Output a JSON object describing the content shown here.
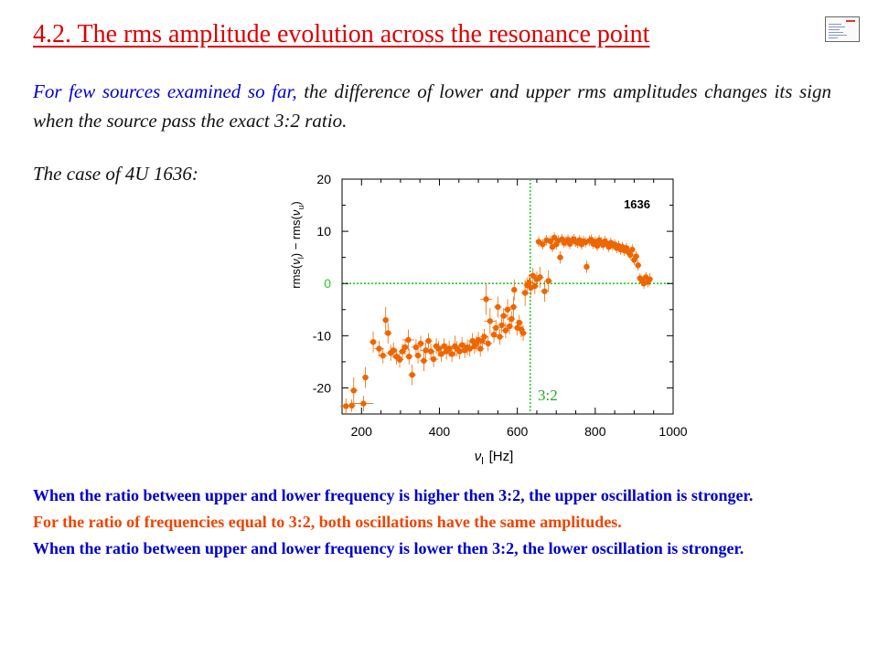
{
  "slide": {
    "title": "4.2. The rms amplitude evolution across the resonance point",
    "intro_part1": "For few sources examined so far, ",
    "intro_part2": "the difference of  lower and upper rms amplitudes changes its sign when the source pass the exact 3:2 ratio.",
    "case_label": "The case of 4U 1636:"
  },
  "conclusions": {
    "upper_stronger": "When the ratio between upper and lower frequency is higher then 3:2, the upper oscillation is stronger.",
    "equal": "For the ratio of frequencies equal to 3:2, both oscillations have the same amplitudes.",
    "lower_stronger": "When the ratio between upper and lower frequency is lower then 3:2, the lower oscillation is stronger."
  },
  "colors": {
    "title": "#dd0000",
    "intro_blue": "#0000cc",
    "data_orange": "#ee6600",
    "reference_lines": "#22cc22",
    "conclusion_orange": "#ee4400"
  },
  "chart_data": {
    "type": "scatter",
    "source_label": "1636",
    "xlabel_symbol": "ν",
    "xlabel_sub": "l",
    "xlabel_unit": "[Hz]",
    "ylabel_rms1": "rms(",
    "ylabel_nu1": "ν",
    "ylabel_sub1": "l",
    "ylabel_minus": ") − rms(",
    "ylabel_nu2": "ν",
    "ylabel_sub2": "u",
    "ylabel_close": ")",
    "xlim": [
      150,
      1000
    ],
    "ylim": [
      -25,
      20
    ],
    "xticks": [
      200,
      400,
      600,
      800,
      1000
    ],
    "yticks": [
      -20,
      -10,
      0,
      10,
      20
    ],
    "hline_y": 0,
    "vline_x": 633,
    "vline_label": "3:2",
    "error_bars": true,
    "points": [
      {
        "x": 160,
        "y": -23.5,
        "xe": 15,
        "ye": 1.5
      },
      {
        "x": 175,
        "y": -23.4,
        "xe": 10,
        "ye": 1.2
      },
      {
        "x": 180,
        "y": -20.5,
        "xe": 10,
        "ye": 2.5
      },
      {
        "x": 205,
        "y": -23.0,
        "xe": 25,
        "ye": 1.5
      },
      {
        "x": 210,
        "y": -18.0,
        "xe": 8,
        "ye": 2.0
      },
      {
        "x": 230,
        "y": -11.2,
        "xe": 10,
        "ye": 2.0
      },
      {
        "x": 245,
        "y": -12.5,
        "xe": 12,
        "ye": 1.5
      },
      {
        "x": 255,
        "y": -13.8,
        "xe": 12,
        "ye": 1.5
      },
      {
        "x": 262,
        "y": -7.0,
        "xe": 8,
        "ye": 2.5
      },
      {
        "x": 268,
        "y": -9.5,
        "xe": 10,
        "ye": 2.0
      },
      {
        "x": 275,
        "y": -13.3,
        "xe": 12,
        "ye": 1.5
      },
      {
        "x": 282,
        "y": -12.8,
        "xe": 10,
        "ye": 1.5
      },
      {
        "x": 290,
        "y": -14.0,
        "xe": 12,
        "ye": 1.5
      },
      {
        "x": 298,
        "y": -14.6,
        "xe": 10,
        "ye": 1.5
      },
      {
        "x": 305,
        "y": -13.0,
        "xe": 10,
        "ye": 1.5
      },
      {
        "x": 312,
        "y": -12.2,
        "xe": 10,
        "ye": 1.5
      },
      {
        "x": 320,
        "y": -10.8,
        "xe": 15,
        "ye": 2.0
      },
      {
        "x": 322,
        "y": -14.0,
        "xe": 10,
        "ye": 1.5
      },
      {
        "x": 330,
        "y": -17.5,
        "xe": 10,
        "ye": 2.0
      },
      {
        "x": 340,
        "y": -12.2,
        "xe": 12,
        "ye": 1.5
      },
      {
        "x": 345,
        "y": -13.8,
        "xe": 10,
        "ye": 1.5
      },
      {
        "x": 352,
        "y": -11.5,
        "xe": 10,
        "ye": 1.5
      },
      {
        "x": 360,
        "y": -14.8,
        "xe": 10,
        "ye": 2.0
      },
      {
        "x": 365,
        "y": -12.8,
        "xe": 12,
        "ye": 1.5
      },
      {
        "x": 372,
        "y": -11.0,
        "xe": 10,
        "ye": 1.5
      },
      {
        "x": 378,
        "y": -13.0,
        "xe": 10,
        "ye": 1.5
      },
      {
        "x": 385,
        "y": -14.5,
        "xe": 12,
        "ye": 1.5
      },
      {
        "x": 392,
        "y": -12.0,
        "xe": 10,
        "ye": 1.5
      },
      {
        "x": 398,
        "y": -12.5,
        "xe": 10,
        "ye": 1.5
      },
      {
        "x": 405,
        "y": -13.5,
        "xe": 10,
        "ye": 1.5
      },
      {
        "x": 412,
        "y": -12.0,
        "xe": 12,
        "ye": 1.5
      },
      {
        "x": 418,
        "y": -13.0,
        "xe": 10,
        "ye": 1.5
      },
      {
        "x": 425,
        "y": -12.5,
        "xe": 10,
        "ye": 1.5
      },
      {
        "x": 432,
        "y": -13.5,
        "xe": 10,
        "ye": 1.5
      },
      {
        "x": 440,
        "y": -12.0,
        "xe": 25,
        "ye": 2.0
      },
      {
        "x": 445,
        "y": -12.5,
        "xe": 10,
        "ye": 1.5
      },
      {
        "x": 452,
        "y": -13.0,
        "xe": 10,
        "ye": 1.5
      },
      {
        "x": 458,
        "y": -11.8,
        "xe": 10,
        "ye": 1.5
      },
      {
        "x": 465,
        "y": -12.8,
        "xe": 10,
        "ye": 1.5
      },
      {
        "x": 472,
        "y": -12.2,
        "xe": 10,
        "ye": 1.5
      },
      {
        "x": 478,
        "y": -12.5,
        "xe": 10,
        "ye": 1.5
      },
      {
        "x": 485,
        "y": -11.0,
        "xe": 10,
        "ye": 1.5
      },
      {
        "x": 490,
        "y": -12.0,
        "xe": 10,
        "ye": 1.5
      },
      {
        "x": 495,
        "y": -11.5,
        "xe": 12,
        "ye": 1.5
      },
      {
        "x": 500,
        "y": -10.8,
        "xe": 10,
        "ye": 1.5
      },
      {
        "x": 505,
        "y": -12.5,
        "xe": 10,
        "ye": 1.5
      },
      {
        "x": 510,
        "y": -11.0,
        "xe": 10,
        "ye": 1.5
      },
      {
        "x": 515,
        "y": -10.2,
        "xe": 10,
        "ye": 1.5
      },
      {
        "x": 520,
        "y": -3.0,
        "xe": 15,
        "ye": 3.0
      },
      {
        "x": 525,
        "y": -11.5,
        "xe": 10,
        "ye": 1.5
      },
      {
        "x": 530,
        "y": -7.2,
        "xe": 15,
        "ye": 2.5
      },
      {
        "x": 540,
        "y": -9.8,
        "xe": 10,
        "ye": 1.5
      },
      {
        "x": 545,
        "y": -8.5,
        "xe": 10,
        "ye": 1.5
      },
      {
        "x": 550,
        "y": -4.5,
        "xe": 10,
        "ye": 2.0
      },
      {
        "x": 555,
        "y": -10.2,
        "xe": 10,
        "ye": 1.5
      },
      {
        "x": 560,
        "y": -8.0,
        "xe": 10,
        "ye": 1.5
      },
      {
        "x": 565,
        "y": -6.2,
        "xe": 10,
        "ye": 1.5
      },
      {
        "x": 570,
        "y": -9.0,
        "xe": 10,
        "ye": 1.5
      },
      {
        "x": 575,
        "y": -5.0,
        "xe": 10,
        "ye": 2.0
      },
      {
        "x": 580,
        "y": -8.2,
        "xe": 10,
        "ye": 1.5
      },
      {
        "x": 585,
        "y": -6.8,
        "xe": 10,
        "ye": 1.5
      },
      {
        "x": 590,
        "y": -4.5,
        "xe": 10,
        "ye": 2.0
      },
      {
        "x": 592,
        "y": -1.2,
        "xe": 8,
        "ye": 2.0
      },
      {
        "x": 600,
        "y": -8.5,
        "xe": 10,
        "ye": 1.5
      },
      {
        "x": 605,
        "y": -7.5,
        "xe": 10,
        "ye": 1.5
      },
      {
        "x": 610,
        "y": -8.8,
        "xe": 10,
        "ye": 1.5
      },
      {
        "x": 615,
        "y": -9.5,
        "xe": 10,
        "ye": 1.5
      },
      {
        "x": 620,
        "y": -1.8,
        "xe": 10,
        "ye": 2.5
      },
      {
        "x": 625,
        "y": -0.3,
        "xe": 10,
        "ye": 1.5
      },
      {
        "x": 630,
        "y": 0.2,
        "xe": 10,
        "ye": 1.5
      },
      {
        "x": 635,
        "y": -0.8,
        "xe": 10,
        "ye": 1.5
      },
      {
        "x": 640,
        "y": 1.5,
        "xe": 10,
        "ye": 1.5
      },
      {
        "x": 645,
        "y": -0.5,
        "xe": 10,
        "ye": 1.5
      },
      {
        "x": 650,
        "y": 0.8,
        "xe": 10,
        "ye": 1.5
      },
      {
        "x": 655,
        "y": 8.0,
        "xe": 8,
        "ye": 1.0
      },
      {
        "x": 658,
        "y": 1.2,
        "xe": 10,
        "ye": 2.0
      },
      {
        "x": 665,
        "y": 7.5,
        "xe": 8,
        "ye": 1.0
      },
      {
        "x": 670,
        "y": -1.5,
        "xe": 10,
        "ye": 2.0
      },
      {
        "x": 675,
        "y": 8.3,
        "xe": 8,
        "ye": 1.0
      },
      {
        "x": 680,
        "y": 0.5,
        "xe": 10,
        "ye": 2.0
      },
      {
        "x": 685,
        "y": 8.1,
        "xe": 8,
        "ye": 1.0
      },
      {
        "x": 690,
        "y": 7.0,
        "xe": 8,
        "ye": 1.0
      },
      {
        "x": 695,
        "y": 8.8,
        "xe": 8,
        "ye": 1.0
      },
      {
        "x": 700,
        "y": 7.5,
        "xe": 8,
        "ye": 1.0
      },
      {
        "x": 705,
        "y": 8.2,
        "xe": 8,
        "ye": 1.0
      },
      {
        "x": 710,
        "y": 5.0,
        "xe": 8,
        "ye": 1.2
      },
      {
        "x": 715,
        "y": 8.5,
        "xe": 8,
        "ye": 1.0
      },
      {
        "x": 720,
        "y": 7.8,
        "xe": 8,
        "ye": 1.0
      },
      {
        "x": 725,
        "y": 8.0,
        "xe": 8,
        "ye": 1.0
      },
      {
        "x": 730,
        "y": 8.4,
        "xe": 8,
        "ye": 1.0
      },
      {
        "x": 735,
        "y": 7.6,
        "xe": 8,
        "ye": 1.0
      },
      {
        "x": 740,
        "y": 8.2,
        "xe": 8,
        "ye": 1.0
      },
      {
        "x": 745,
        "y": 8.5,
        "xe": 8,
        "ye": 1.0
      },
      {
        "x": 750,
        "y": 8.0,
        "xe": 8,
        "ye": 1.0
      },
      {
        "x": 755,
        "y": 7.8,
        "xe": 8,
        "ye": 1.0
      },
      {
        "x": 760,
        "y": 8.3,
        "xe": 8,
        "ye": 1.0
      },
      {
        "x": 765,
        "y": 7.5,
        "xe": 8,
        "ye": 1.0
      },
      {
        "x": 770,
        "y": 8.1,
        "xe": 8,
        "ye": 1.0
      },
      {
        "x": 775,
        "y": 7.9,
        "xe": 8,
        "ye": 1.0
      },
      {
        "x": 778,
        "y": 3.2,
        "xe": 8,
        "ye": 1.2
      },
      {
        "x": 785,
        "y": 8.2,
        "xe": 8,
        "ye": 1.0
      },
      {
        "x": 790,
        "y": 8.4,
        "xe": 8,
        "ye": 1.0
      },
      {
        "x": 795,
        "y": 7.6,
        "xe": 8,
        "ye": 1.0
      },
      {
        "x": 800,
        "y": 8.0,
        "xe": 8,
        "ye": 1.0
      },
      {
        "x": 805,
        "y": 7.2,
        "xe": 8,
        "ye": 1.0
      },
      {
        "x": 810,
        "y": 8.3,
        "xe": 8,
        "ye": 1.0
      },
      {
        "x": 815,
        "y": 7.9,
        "xe": 8,
        "ye": 1.0
      },
      {
        "x": 820,
        "y": 7.4,
        "xe": 8,
        "ye": 1.0
      },
      {
        "x": 825,
        "y": 8.1,
        "xe": 8,
        "ye": 1.0
      },
      {
        "x": 830,
        "y": 7.6,
        "xe": 8,
        "ye": 1.0
      },
      {
        "x": 835,
        "y": 7.0,
        "xe": 8,
        "ye": 1.0
      },
      {
        "x": 840,
        "y": 7.8,
        "xe": 8,
        "ye": 1.0
      },
      {
        "x": 845,
        "y": 7.3,
        "xe": 8,
        "ye": 1.0
      },
      {
        "x": 850,
        "y": 7.5,
        "xe": 8,
        "ye": 1.0
      },
      {
        "x": 855,
        "y": 6.8,
        "xe": 8,
        "ye": 1.0
      },
      {
        "x": 860,
        "y": 7.2,
        "xe": 8,
        "ye": 1.0
      },
      {
        "x": 865,
        "y": 6.5,
        "xe": 8,
        "ye": 1.0
      },
      {
        "x": 870,
        "y": 7.0,
        "xe": 8,
        "ye": 1.0
      },
      {
        "x": 875,
        "y": 6.3,
        "xe": 8,
        "ye": 1.0
      },
      {
        "x": 880,
        "y": 6.8,
        "xe": 8,
        "ye": 1.0
      },
      {
        "x": 885,
        "y": 6.0,
        "xe": 8,
        "ye": 1.0
      },
      {
        "x": 890,
        "y": 5.5,
        "xe": 8,
        "ye": 1.0
      },
      {
        "x": 895,
        "y": 6.5,
        "xe": 8,
        "ye": 1.0
      },
      {
        "x": 900,
        "y": 4.5,
        "xe": 8,
        "ye": 1.0
      },
      {
        "x": 905,
        "y": 5.2,
        "xe": 8,
        "ye": 1.0
      },
      {
        "x": 910,
        "y": 3.5,
        "xe": 8,
        "ye": 1.0
      },
      {
        "x": 915,
        "y": 1.0,
        "xe": 8,
        "ye": 1.0
      },
      {
        "x": 920,
        "y": 0.5,
        "xe": 8,
        "ye": 1.0
      },
      {
        "x": 925,
        "y": 0.0,
        "xe": 8,
        "ye": 1.0
      },
      {
        "x": 930,
        "y": 1.2,
        "xe": 8,
        "ye": 1.0
      },
      {
        "x": 935,
        "y": 0.3,
        "xe": 8,
        "ye": 1.0
      },
      {
        "x": 940,
        "y": 0.8,
        "xe": 8,
        "ye": 1.2
      }
    ]
  }
}
